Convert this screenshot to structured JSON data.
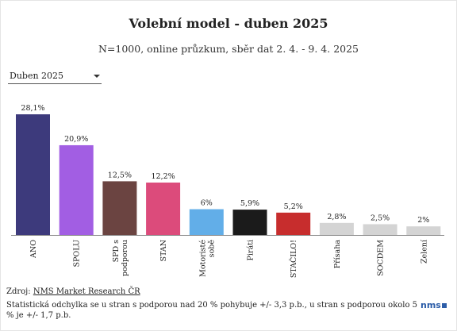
{
  "header": {
    "title": "Volební model - duben 2025",
    "subtitle": "N=1000, online průzkum, sběr dat 2. 4. - 9. 4. 2025"
  },
  "controls": {
    "period_select": "Duben 2025"
  },
  "chart_data": {
    "type": "bar",
    "categories": [
      "ANO",
      "SPOLU",
      "SPD s podporou",
      "STAN",
      "Motoristé sobě",
      "Piráti",
      "STAČILO!",
      "Přísaha",
      "SOCDEM",
      "Zelení"
    ],
    "values": [
      28.1,
      20.9,
      12.5,
      12.2,
      6,
      5.9,
      5.2,
      2.8,
      2.5,
      2
    ],
    "value_labels": [
      "28,1%",
      "20,9%",
      "12,5%",
      "12,2%",
      "6%",
      "5,9%",
      "5,2%",
      "2,8%",
      "2,5%",
      "2%"
    ],
    "colors": [
      "#3d3a7c",
      "#a25ee3",
      "#6b4441",
      "#dc4b7b",
      "#62aee8",
      "#1b1b1b",
      "#c72d2d",
      "#d4d4d4",
      "#d4d4d4",
      "#d4d4d4"
    ],
    "title": "Volební model - duben 2025",
    "xlabel": "",
    "ylabel": "",
    "ylim": [
      0,
      28.1
    ],
    "grid": false,
    "legend": "none"
  },
  "footer": {
    "source_prefix": "Zdroj: ",
    "source_link": "NMS Market Research ČR",
    "note": "Statistická odchylka se u stran s podporou nad 20 % pohybuje +/- 3,3 p.b., u stran s podporou okolo 5 % je +/- 1,7 p.b.",
    "logo_text": "nms"
  }
}
